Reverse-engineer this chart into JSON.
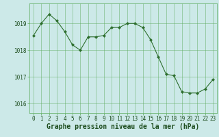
{
  "x": [
    0,
    1,
    2,
    3,
    4,
    5,
    6,
    7,
    8,
    9,
    10,
    11,
    12,
    13,
    14,
    15,
    16,
    17,
    18,
    19,
    20,
    21,
    22,
    23
  ],
  "y": [
    1018.55,
    1019.0,
    1019.35,
    1019.1,
    1018.7,
    1018.2,
    1018.0,
    1018.5,
    1018.5,
    1018.55,
    1018.85,
    1018.85,
    1019.0,
    1019.0,
    1018.85,
    1018.4,
    1017.75,
    1017.1,
    1017.05,
    1016.45,
    1016.4,
    1016.4,
    1016.55,
    1016.9
  ],
  "line_color": "#2d6e2d",
  "marker_color": "#2d6e2d",
  "bg_color": "#cce9e8",
  "grid_color": "#5aaa5a",
  "xlabel": "Graphe pression niveau de la mer (hPa)",
  "xlabel_color": "#1a4a1a",
  "ylabel_ticks": [
    1016,
    1017,
    1018,
    1019
  ],
  "ylim": [
    1015.65,
    1019.75
  ],
  "xlim": [
    -0.5,
    23.5
  ],
  "xticks": [
    0,
    1,
    2,
    3,
    4,
    5,
    6,
    7,
    8,
    9,
    10,
    11,
    12,
    13,
    14,
    15,
    16,
    17,
    18,
    19,
    20,
    21,
    22,
    23
  ],
  "tick_fontsize": 5.5,
  "xlabel_fontsize": 7.0
}
